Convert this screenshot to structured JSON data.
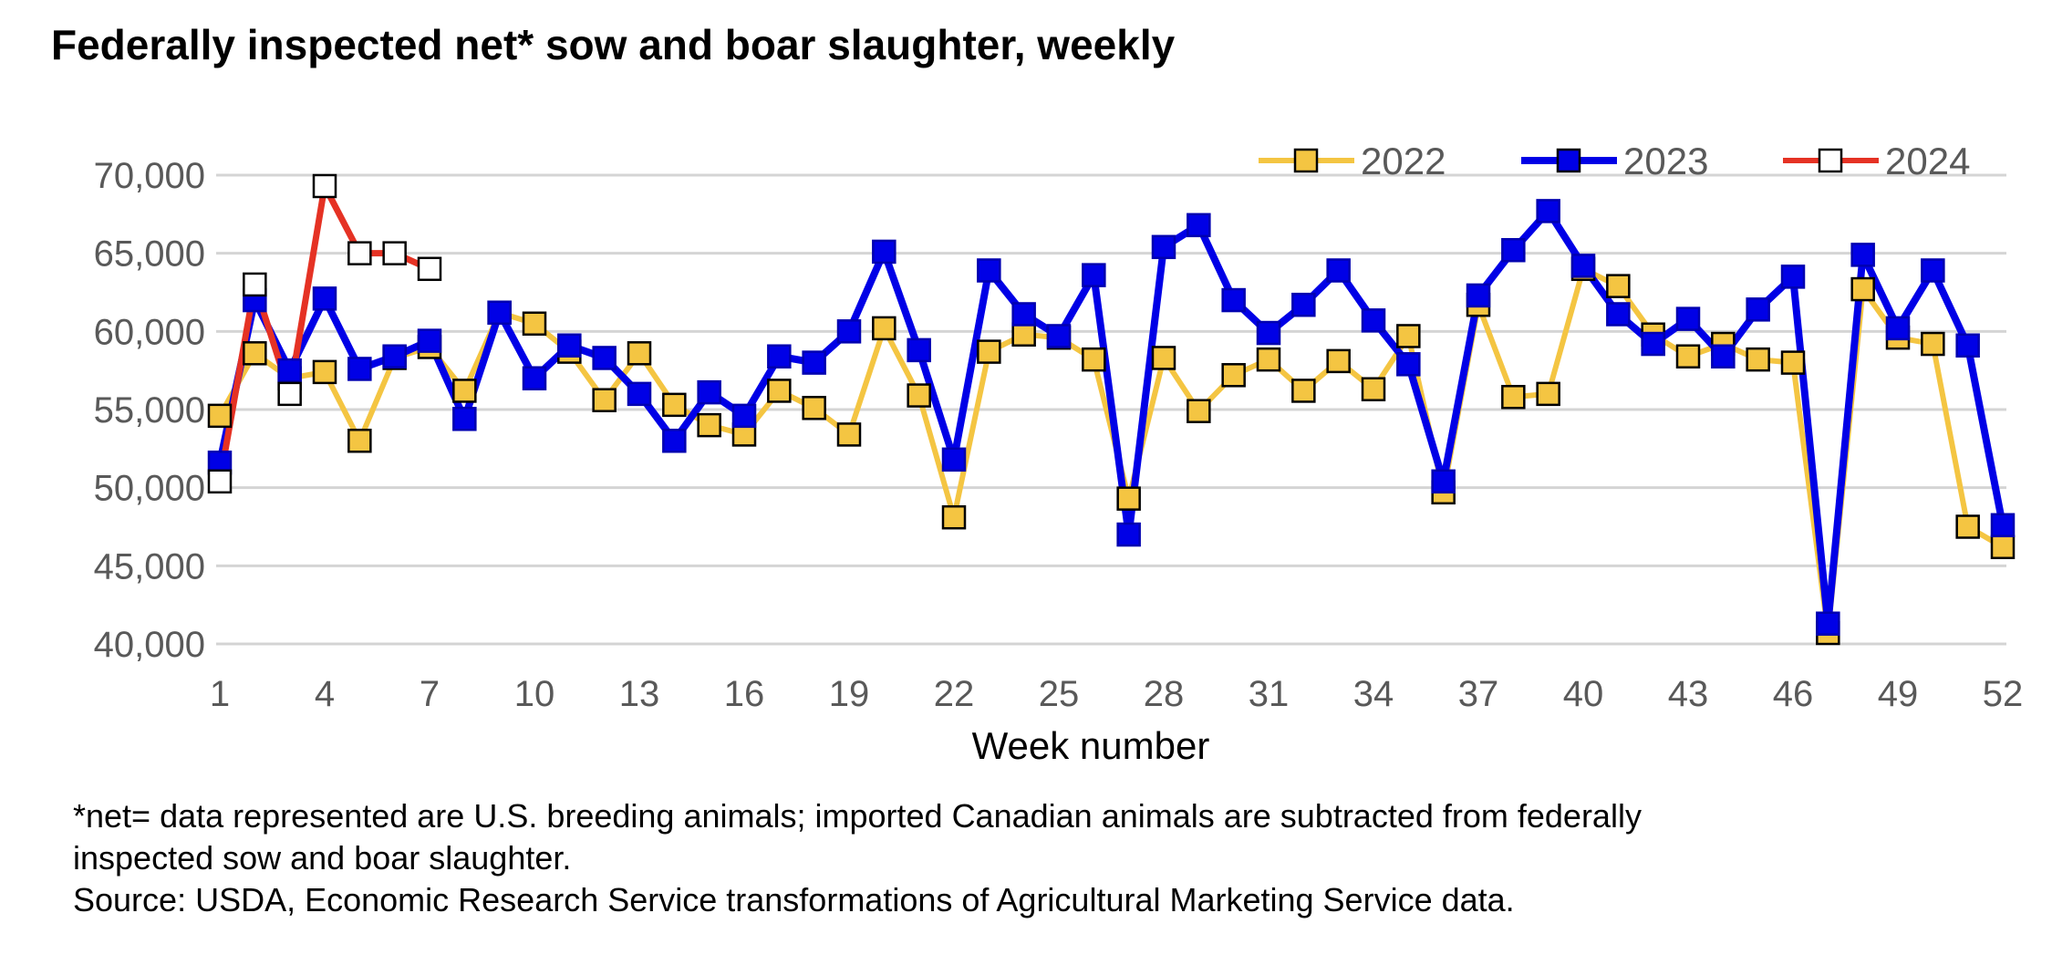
{
  "chart_data": {
    "type": "line",
    "title": "Federally inspected net* sow and boar slaughter, weekly",
    "xlabel": "Week number",
    "ylabel": "",
    "xlim": [
      1,
      52
    ],
    "ylim": [
      40000,
      70000
    ],
    "x_ticks": [
      1,
      4,
      7,
      10,
      13,
      16,
      19,
      22,
      25,
      28,
      31,
      34,
      37,
      40,
      43,
      46,
      49,
      52
    ],
    "y_ticks": [
      40000,
      45000,
      50000,
      55000,
      60000,
      65000,
      70000
    ],
    "y_tick_labels": [
      "40,000",
      "45,000",
      "50,000",
      "55,000",
      "60,000",
      "65,000",
      "70,000"
    ],
    "grid": true,
    "legend_position": "top-right",
    "series": [
      {
        "name": "2022",
        "color": "#F4C542",
        "marker_fill": "#F4C542",
        "x": [
          1,
          2,
          3,
          4,
          5,
          6,
          7,
          8,
          9,
          10,
          11,
          12,
          13,
          14,
          15,
          16,
          17,
          18,
          19,
          20,
          21,
          22,
          23,
          24,
          25,
          26,
          27,
          28,
          29,
          30,
          31,
          32,
          33,
          34,
          35,
          36,
          37,
          38,
          39,
          40,
          41,
          42,
          43,
          44,
          45,
          46,
          47,
          48,
          49,
          50,
          51,
          52
        ],
        "values": [
          54600,
          58600,
          57000,
          57400,
          53000,
          58300,
          59000,
          56200,
          61200,
          60500,
          58700,
          55600,
          58600,
          55300,
          54000,
          53400,
          56200,
          55100,
          53400,
          60200,
          55900,
          48100,
          58700,
          59800,
          59600,
          58200,
          49300,
          58300,
          54900,
          57200,
          58200,
          56200,
          58100,
          56300,
          59700,
          49700,
          61700,
          55800,
          56000,
          64000,
          62900,
          59800,
          58400,
          59200,
          58200,
          58000,
          40700,
          62700,
          59600,
          59200,
          47500,
          46200
        ]
      },
      {
        "name": "2023",
        "color": "#0000E6",
        "marker_fill": "#0000E6",
        "x": [
          1,
          2,
          3,
          4,
          5,
          6,
          7,
          8,
          9,
          10,
          11,
          12,
          13,
          14,
          15,
          16,
          17,
          18,
          19,
          20,
          21,
          22,
          23,
          24,
          25,
          26,
          27,
          28,
          29,
          30,
          31,
          32,
          33,
          34,
          35,
          36,
          37,
          38,
          39,
          40,
          41,
          42,
          43,
          44,
          45,
          46,
          47,
          48,
          49,
          50,
          51,
          52
        ],
        "values": [
          51600,
          62000,
          57500,
          62100,
          57600,
          58400,
          59400,
          54400,
          61200,
          57000,
          59100,
          58300,
          56000,
          53000,
          56100,
          54600,
          58400,
          58000,
          60000,
          65100,
          58800,
          51800,
          63900,
          61100,
          59700,
          63600,
          47000,
          65400,
          66800,
          62000,
          59900,
          61700,
          63900,
          60700,
          57900,
          50400,
          62300,
          65200,
          67700,
          64200,
          61100,
          59200,
          60800,
          58400,
          61400,
          63500,
          41300,
          64900,
          60200,
          63900,
          59100,
          47600
        ]
      },
      {
        "name": "2024",
        "color": "#E53224",
        "marker_fill": "#FFFFFF",
        "x": [
          1,
          2,
          3,
          4,
          5,
          6,
          7
        ],
        "values": [
          50400,
          63000,
          56000,
          69300,
          65000,
          65000,
          64000
        ]
      }
    ]
  },
  "footnote": {
    "line1": "*net= data represented are U.S. breeding animals; imported Canadian animals are subtracted from federally",
    "line2": "inspected sow and boar slaughter.",
    "line3": "Source: USDA, Economic Research Service transformations of Agricultural Marketing Service data."
  }
}
